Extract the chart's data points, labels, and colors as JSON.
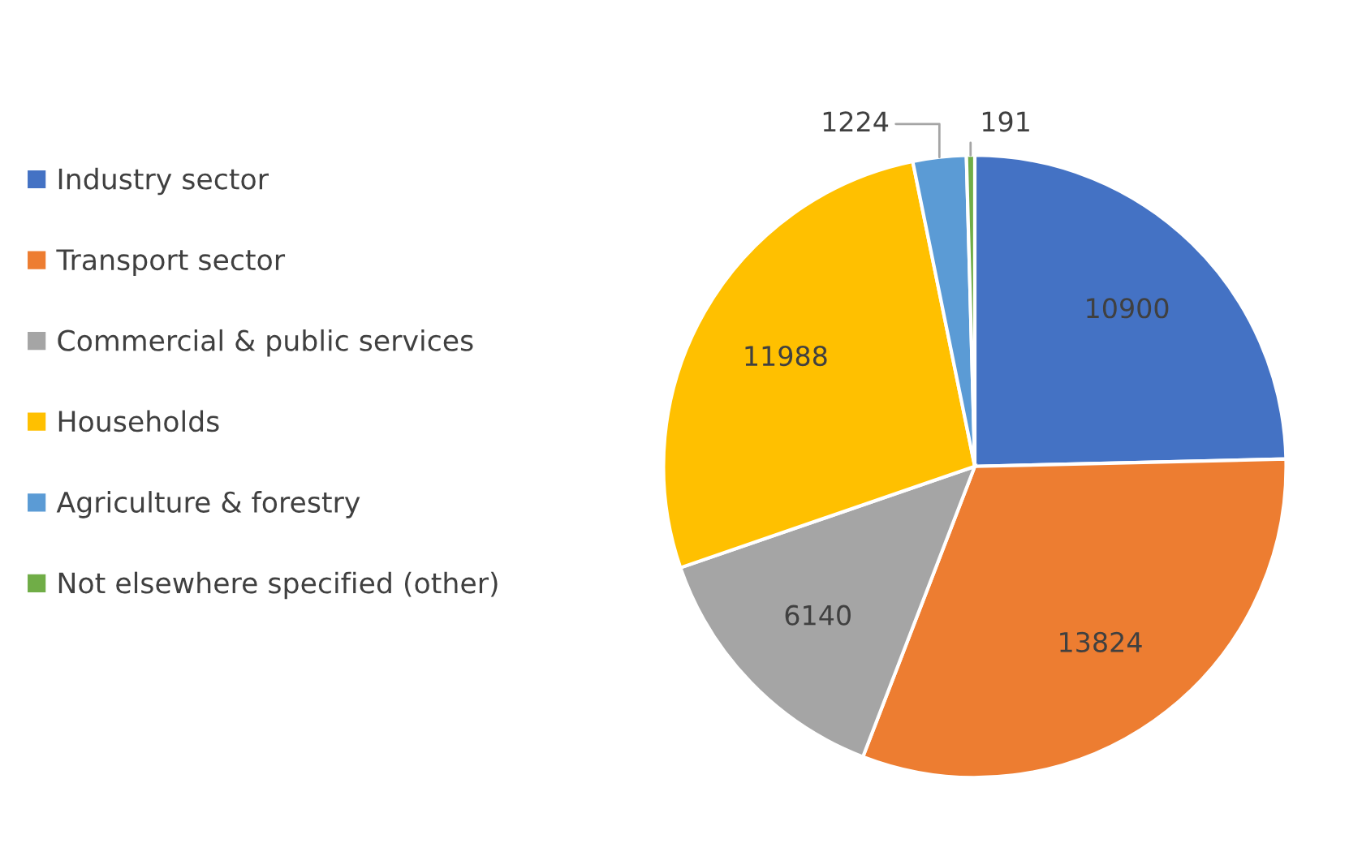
{
  "chart_data": {
    "type": "pie",
    "categories": [
      "Industry sector",
      "Transport sector",
      "Commercial & public services",
      "Households",
      "Agriculture & forestry",
      "Not elsewhere specified (other)"
    ],
    "values": [
      10900,
      13824,
      6140,
      11988,
      1224,
      191
    ],
    "colors": [
      "#4472c4",
      "#ed7d31",
      "#a5a5a5",
      "#ffc000",
      "#5b9bd5",
      "#70ad47"
    ],
    "data_labels": true,
    "legend": "left"
  }
}
